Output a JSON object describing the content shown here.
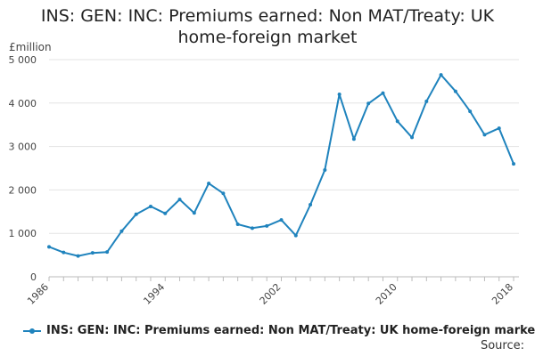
{
  "title_line1": "INS: GEN: INC: Premiums earned: Non MAT/Treaty: UK",
  "title_line2": "home-foreign market",
  "source_label": "Source:",
  "series_color": "#1f83bd",
  "chart_data": {
    "type": "line",
    "title": "INS: GEN: INC: Premiums earned: Non MAT/Treaty: UK home-foreign market",
    "ylabel": "£million",
    "xlabel": "",
    "xlim": [
      1986,
      2018
    ],
    "ylim": [
      0,
      5000
    ],
    "xticks": [
      1986,
      1994,
      2002,
      2010,
      2018
    ],
    "xtick_labels": [
      "1986",
      "1994",
      "2002",
      "2010",
      "2018"
    ],
    "yticks": [
      0,
      1000,
      2000,
      3000,
      4000,
      5000
    ],
    "ytick_labels": [
      "0",
      "1 000",
      "2 000",
      "3 000",
      "4 000",
      "5 000"
    ],
    "grid": true,
    "legend_position": "bottom",
    "series": [
      {
        "name": "INS: GEN: INC: Premiums earned: Non MAT/Treaty: UK home-foreign market",
        "x": [
          1986,
          1987,
          1988,
          1989,
          1990,
          1991,
          1992,
          1993,
          1994,
          1995,
          1996,
          1997,
          1998,
          1999,
          2000,
          2001,
          2002,
          2003,
          2004,
          2005,
          2006,
          2007,
          2008,
          2009,
          2010,
          2011,
          2012,
          2013,
          2014,
          2015,
          2016,
          2017,
          2018
        ],
        "values": [
          690,
          560,
          480,
          550,
          570,
          1050,
          1440,
          1620,
          1460,
          1780,
          1470,
          2150,
          1920,
          1210,
          1120,
          1170,
          1310,
          950,
          1660,
          2460,
          4200,
          3170,
          3990,
          4230,
          3580,
          3210,
          4040,
          4650,
          4270,
          3810,
          3270,
          3420,
          2600
        ]
      }
    ]
  }
}
